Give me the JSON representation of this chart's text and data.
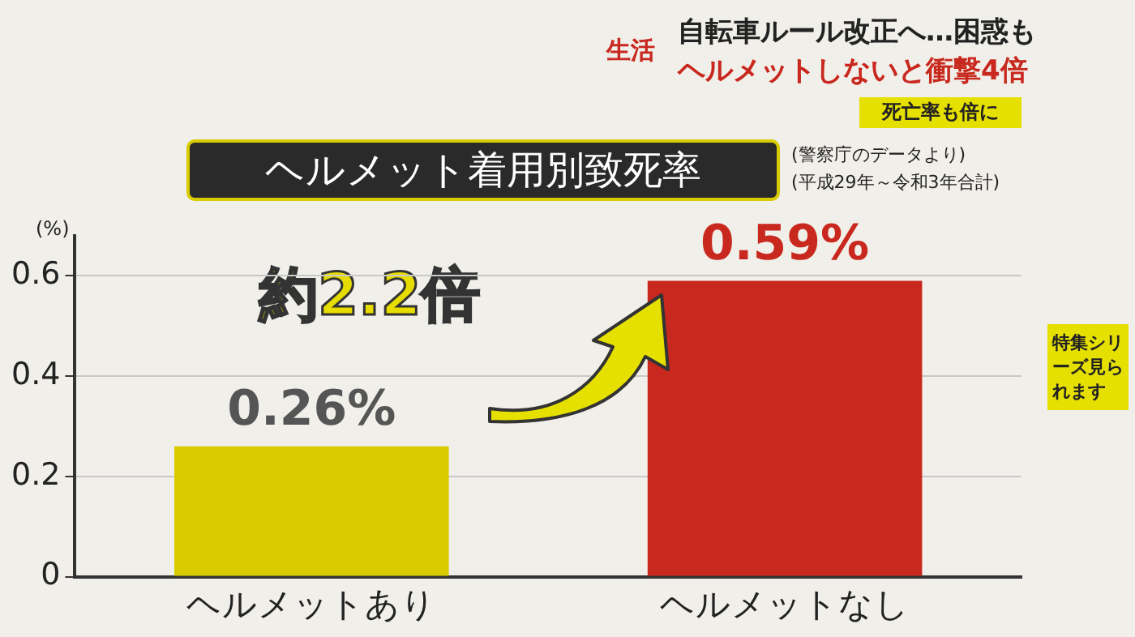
{
  "chart_data": {
    "type": "bar",
    "title": "ヘルメット着用別致死率",
    "ylabel": "(%)",
    "categories": [
      "ヘルメットあり",
      "ヘルメットなし"
    ],
    "values": [
      0.26,
      0.59
    ],
    "colors": [
      "#d9cb00",
      "#c8281e"
    ],
    "value_labels": [
      "0.26%",
      "0.59%"
    ],
    "ylim": [
      0,
      0.68
    ],
    "yticks": [
      0,
      0.2,
      0.4,
      0.6
    ],
    "grid": "y",
    "legend": false,
    "annotations": [
      "(警察庁のデータより)",
      "(平成29年～令和3年合計)",
      "約2.2倍",
      "生活",
      "自転車ルール改正へ…困惑も",
      "ヘルメットしないと衝撃4倍",
      "死亡率も倍に",
      "特集シリーズ見られます"
    ]
  }
}
